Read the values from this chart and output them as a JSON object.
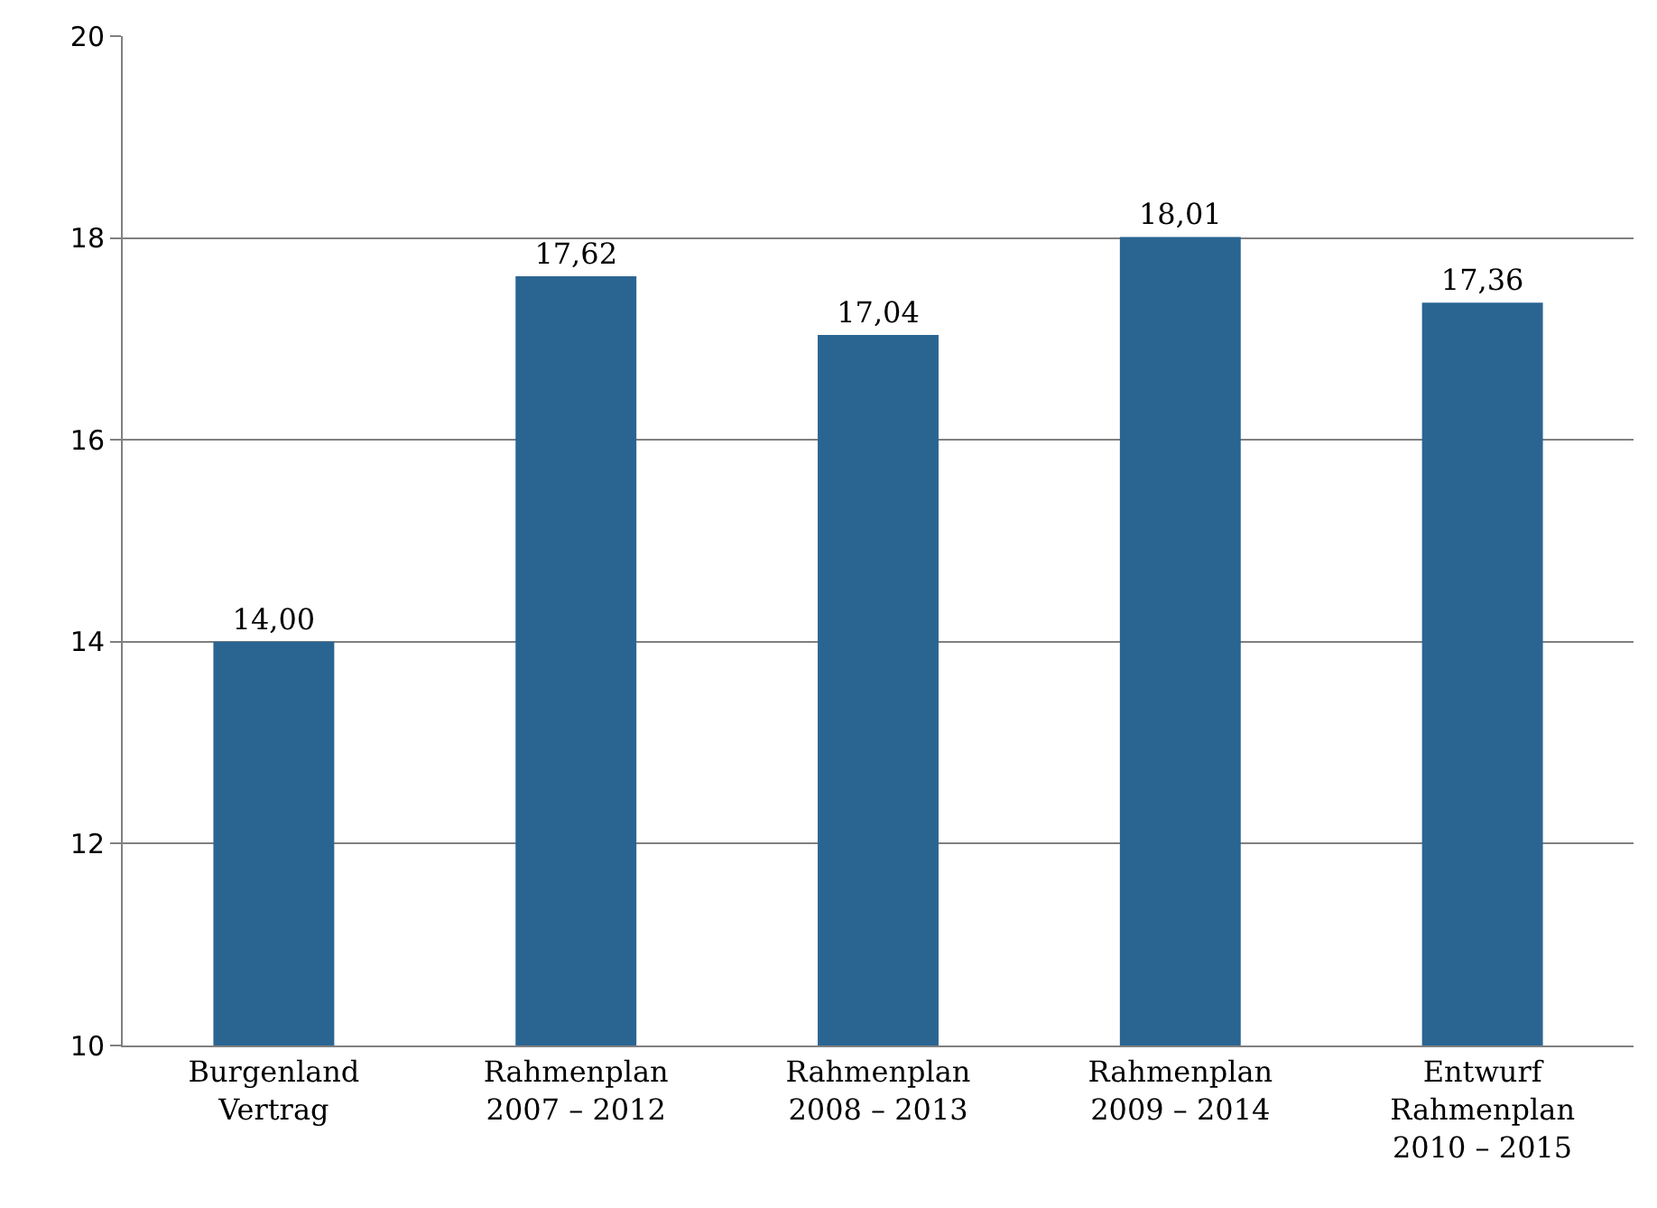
{
  "chart_data": {
    "type": "bar",
    "categories": [
      "Burgenland\nVertrag",
      "Rahmenplan\n2007 – 2012",
      "Rahmenplan\n2008 – 2013",
      "Rahmenplan\n2009 – 2014",
      "Entwurf\nRahmenplan\n2010 – 2015"
    ],
    "values": [
      14.0,
      17.62,
      17.04,
      18.01,
      17.36
    ],
    "value_labels": [
      "14,00",
      "17,62",
      "17,04",
      "18,01",
      "17,36"
    ],
    "color": "#2a6592",
    "ylim": [
      10,
      20
    ],
    "yticks": [
      10,
      12,
      14,
      16,
      18,
      20
    ],
    "grid": "y",
    "legend": false
  }
}
